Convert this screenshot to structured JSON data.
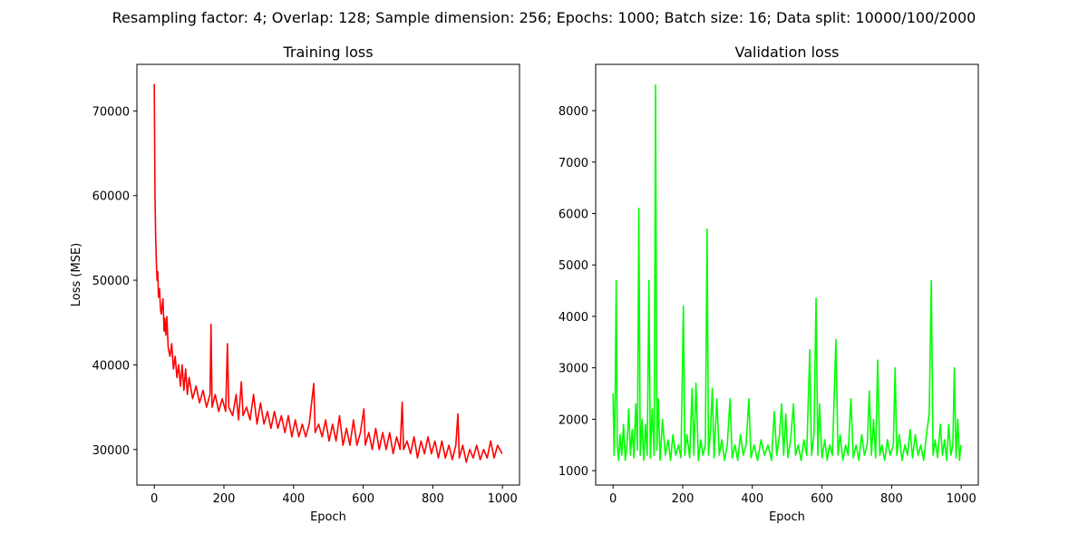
{
  "title": "Resampling factor: 4; Overlap: 128; Sample dimension: 256; Epochs: 1000; Batch size: 16; Data split: 10000/100/2000",
  "chart_data": [
    {
      "type": "line",
      "title": "Training loss",
      "xlabel": "Epoch",
      "ylabel": "Loss (MSE)",
      "color": "#ff0000",
      "x": [
        0,
        2,
        4,
        6,
        8,
        10,
        12,
        15,
        18,
        20,
        25,
        28,
        30,
        33,
        36,
        40,
        45,
        50,
        55,
        60,
        65,
        70,
        75,
        80,
        85,
        90,
        95,
        100,
        110,
        120,
        130,
        140,
        150,
        160,
        163,
        166,
        175,
        185,
        195,
        205,
        210,
        214,
        225,
        235,
        242,
        250,
        255,
        265,
        275,
        285,
        295,
        305,
        315,
        325,
        335,
        345,
        355,
        365,
        375,
        385,
        395,
        405,
        415,
        425,
        435,
        445,
        458,
        462,
        472,
        482,
        492,
        502,
        512,
        522,
        532,
        542,
        552,
        562,
        572,
        582,
        592,
        602,
        606,
        616,
        626,
        636,
        646,
        656,
        666,
        676,
        686,
        696,
        706,
        712,
        716,
        726,
        736,
        746,
        756,
        766,
        776,
        786,
        796,
        806,
        816,
        826,
        836,
        846,
        856,
        866,
        872,
        876,
        886,
        896,
        906,
        916,
        926,
        936,
        946,
        956,
        966,
        976,
        986,
        999
      ],
      "values": [
        73200,
        60000,
        55000,
        52000,
        50000,
        51000,
        48000,
        49000,
        46500,
        46000,
        47800,
        44000,
        45500,
        43500,
        45700,
        42000,
        41000,
        42500,
        39500,
        41000,
        38500,
        40000,
        37500,
        40000,
        37000,
        39500,
        36500,
        38500,
        36000,
        37500,
        35500,
        37000,
        35000,
        36500,
        44800,
        35000,
        36500,
        34500,
        36000,
        34500,
        42500,
        35000,
        34000,
        36500,
        33500,
        38000,
        34000,
        35000,
        33500,
        36500,
        33000,
        35500,
        33000,
        34500,
        32500,
        34500,
        32500,
        34000,
        32000,
        34000,
        31500,
        33500,
        31500,
        33000,
        31500,
        33000,
        37800,
        32000,
        33000,
        31500,
        33500,
        31000,
        33000,
        31000,
        34000,
        30500,
        32500,
        30500,
        33500,
        30500,
        32000,
        34800,
        30500,
        32000,
        30000,
        32500,
        30000,
        32000,
        30000,
        32000,
        29500,
        31500,
        30000,
        35600,
        30000,
        31000,
        29500,
        31500,
        29000,
        31000,
        29500,
        31500,
        29500,
        31000,
        29000,
        31000,
        29000,
        30500,
        28800,
        30500,
        34200,
        29000,
        30500,
        28500,
        30000,
        29000,
        30500,
        28800,
        30000,
        29000,
        31000,
        29000,
        30500,
        29500
      ],
      "xlim": [
        -49.95,
        1048.95
      ],
      "ylim": [
        25800,
        75500
      ],
      "xticks": [
        0,
        200,
        400,
        600,
        800,
        1000
      ],
      "yticks": [
        30000,
        40000,
        50000,
        60000,
        70000
      ]
    },
    {
      "type": "line",
      "title": "Validation loss",
      "xlabel": "Epoch",
      "color": "#00ff00",
      "x": [
        0,
        3,
        6,
        9,
        12,
        16,
        20,
        25,
        30,
        35,
        40,
        45,
        50,
        55,
        60,
        65,
        70,
        74,
        78,
        83,
        88,
        93,
        98,
        103,
        107,
        112,
        118,
        122,
        126,
        130,
        135,
        142,
        150,
        158,
        165,
        172,
        180,
        188,
        195,
        202,
        206,
        212,
        220,
        227,
        232,
        238,
        245,
        252,
        258,
        265,
        270,
        274,
        280,
        285,
        290,
        298,
        305,
        312,
        320,
        328,
        336,
        342,
        350,
        358,
        366,
        374,
        382,
        390,
        396,
        405,
        415,
        425,
        435,
        445,
        455,
        463,
        470,
        478,
        484,
        490,
        496,
        502,
        510,
        518,
        524,
        532,
        540,
        548,
        556,
        565,
        570,
        577,
        583,
        588,
        593,
        600,
        608,
        615,
        622,
        630,
        640,
        646,
        652,
        660,
        668,
        675,
        683,
        690,
        698,
        706,
        714,
        722,
        730,
        736,
        742,
        748,
        754,
        760,
        766,
        772,
        780,
        788,
        796,
        805,
        810,
        815,
        822,
        830,
        838,
        846,
        853,
        860,
        868,
        876,
        884,
        892,
        900,
        908,
        914,
        919,
        925,
        932,
        940,
        946,
        952,
        958,
        964,
        970,
        976,
        980,
        985,
        990,
        995,
        999
      ],
      "values": [
        2500,
        1300,
        2400,
        4700,
        1500,
        1200,
        1700,
        1300,
        1900,
        1200,
        1500,
        2200,
        1300,
        1800,
        1250,
        2300,
        1400,
        6100,
        1300,
        2000,
        1200,
        1900,
        1300,
        4700,
        1250,
        2200,
        1300,
        8500,
        1400,
        2400,
        1200,
        2000,
        1300,
        1600,
        1200,
        1700,
        1300,
        1500,
        1250,
        4200,
        1300,
        1700,
        1250,
        2600,
        1300,
        2700,
        1200,
        1600,
        1300,
        1500,
        5700,
        1300,
        1800,
        2600,
        1250,
        2400,
        1300,
        1600,
        1200,
        1500,
        2400,
        1250,
        1500,
        1200,
        1700,
        1300,
        1500,
        2400,
        1250,
        1500,
        1200,
        1600,
        1300,
        1500,
        1200,
        2150,
        1300,
        1700,
        2300,
        1300,
        2100,
        1250,
        1600,
        2300,
        1300,
        1500,
        1200,
        1600,
        1300,
        3350,
        1300,
        1700,
        4350,
        1300,
        2300,
        1250,
        1600,
        1200,
        1500,
        1300,
        3550,
        1300,
        1700,
        1200,
        1500,
        1300,
        2400,
        1250,
        1500,
        1200,
        1700,
        1300,
        1500,
        2550,
        1300,
        2000,
        1250,
        3150,
        1300,
        1500,
        1200,
        1600,
        1300,
        1500,
        3000,
        1300,
        1700,
        1200,
        1500,
        1300,
        1800,
        1250,
        1700,
        1300,
        1500,
        1200,
        1700,
        2100,
        4700,
        1300,
        1600,
        1250,
        1900,
        1300,
        1600,
        1200,
        1900,
        1300,
        1500,
        3000,
        1250,
        2000,
        1200,
        1500
      ],
      "xlim": [
        -49.95,
        1048.95
      ],
      "ylim": [
        720,
        8900
      ],
      "xticks": [
        0,
        200,
        400,
        600,
        800,
        1000
      ],
      "yticks": [
        1000,
        2000,
        3000,
        4000,
        5000,
        6000,
        7000,
        8000
      ]
    }
  ]
}
